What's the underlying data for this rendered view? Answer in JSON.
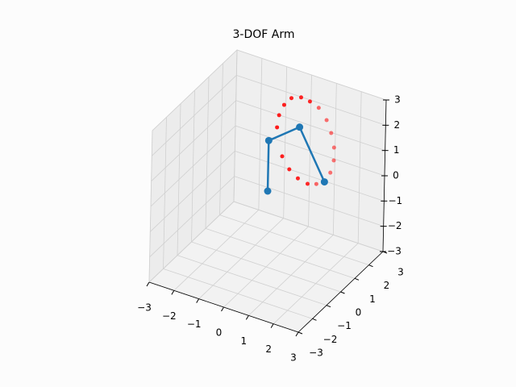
{
  "chart_data": {
    "type": "3d",
    "title": "3-DOF Arm",
    "xlim": [
      -3,
      3
    ],
    "ylim": [
      -3,
      3
    ],
    "zlim": [
      -3,
      3
    ],
    "xticks": [
      {
        "value": -3,
        "label": "−3"
      },
      {
        "value": -2,
        "label": "−2"
      },
      {
        "value": -1,
        "label": "−1"
      },
      0,
      1,
      2,
      3
    ],
    "yticks": [
      {
        "value": -3,
        "label": "−3"
      },
      {
        "value": -2,
        "label": "−2"
      },
      {
        "value": -1,
        "label": "−1"
      },
      0,
      1,
      2,
      3
    ],
    "zticks": [
      {
        "value": -3,
        "label": "−3"
      },
      {
        "value": -2,
        "label": "−2"
      },
      {
        "value": -1,
        "label": "−1"
      },
      0,
      1,
      2,
      3
    ],
    "grid": true,
    "series": [
      {
        "mode": "markers",
        "color": "#ff0000",
        "x": [
          0.48,
          0.71,
          1.03,
          1.32,
          1.61,
          1.88,
          2.04,
          2.14,
          2.14,
          2.04,
          1.85,
          1.59,
          1.3,
          0.98,
          0.69,
          0.45,
          0.26,
          0.32
        ],
        "y": [
          0.19,
          0.29,
          0.41,
          0.53,
          0.65,
          0.75,
          0.81,
          0.86,
          0.86,
          0.81,
          0.74,
          0.63,
          0.52,
          0.39,
          0.28,
          0.18,
          0.11,
          0.13
        ],
        "z": [
          3.47,
          3.76,
          3.83,
          3.7,
          3.48,
          3.03,
          2.54,
          1.97,
          1.46,
          0.97,
          0.58,
          0.47,
          0.44,
          0.62,
          0.94,
          1.43,
          2.55,
          3.04
        ]
      },
      {
        "mode": "lines+markers",
        "color": "#1f77b4",
        "x": [
          0,
          0,
          1.0,
          1.85
        ],
        "y": [
          0,
          0,
          0.4,
          0.74
        ],
        "z": [
          0,
          2,
          2.65,
          0.58
        ]
      }
    ]
  }
}
